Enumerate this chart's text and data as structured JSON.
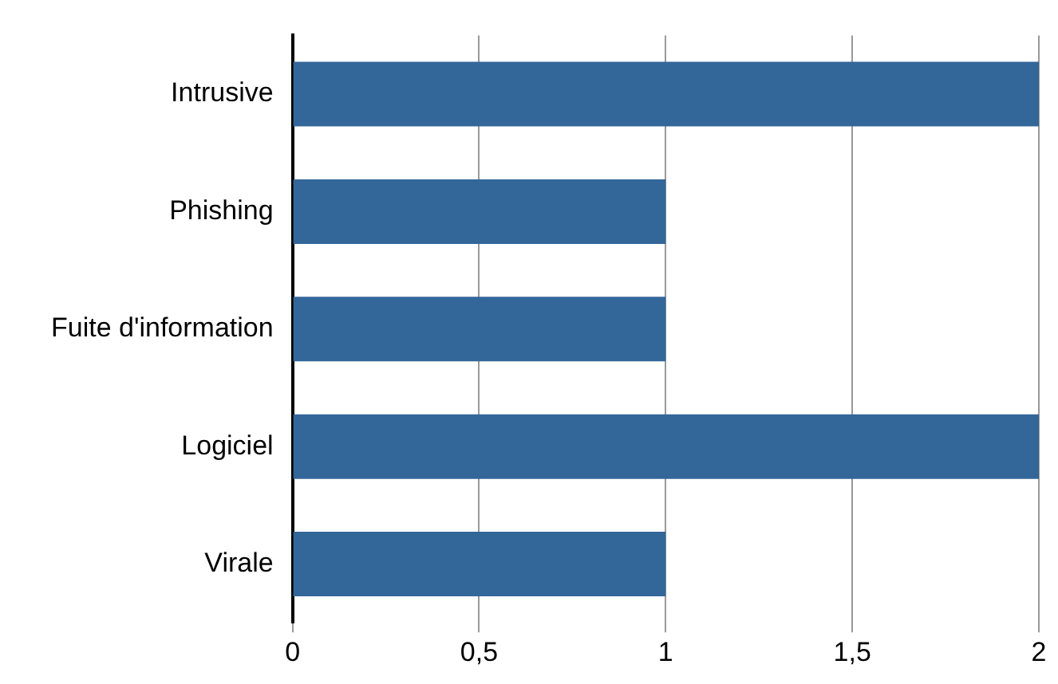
{
  "chart_data": {
    "type": "bar",
    "orientation": "horizontal",
    "categories": [
      "Intrusive",
      "Phishing",
      "Fuite d'information",
      "Logiciel",
      "Virale"
    ],
    "values": [
      2,
      1,
      1,
      2,
      1
    ],
    "color": "#336699",
    "xlim": [
      0,
      2
    ],
    "xticks": [
      0,
      {
        "value": 0.5,
        "label": "0,5"
      },
      1,
      {
        "value": 1.5,
        "label": "1,5"
      },
      2
    ],
    "grid": "x",
    "legend": false
  }
}
